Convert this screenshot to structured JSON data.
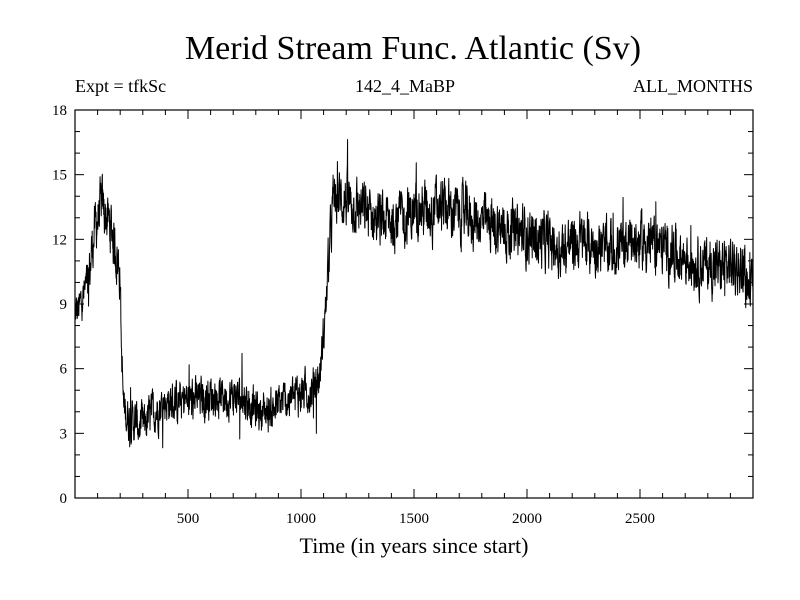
{
  "chart_data": {
    "type": "line",
    "title": "Merid Stream Func. Atlantic (Sv)",
    "subtitle_left": "Expt = tfkSc",
    "subtitle_center": "142_4_MaBP",
    "subtitle_right": "ALL_MONTHS",
    "xlabel": "Time (in years since start)",
    "ylabel": "",
    "xlim": [
      0,
      3000
    ],
    "ylim": [
      0,
      18
    ],
    "xticks": [
      500,
      1000,
      1500,
      2000,
      2500
    ],
    "yticks": [
      0,
      3,
      6,
      9,
      12,
      15,
      18
    ],
    "grid": false,
    "series": [
      {
        "color": "#000000",
        "x": [
          0,
          20,
          40,
          60,
          80,
          100,
          120,
          140,
          160,
          180,
          200,
          205,
          215,
          230,
          250,
          280,
          300,
          320,
          350,
          400,
          450,
          500,
          550,
          600,
          650,
          700,
          750,
          800,
          850,
          900,
          950,
          1000,
          1050,
          1080,
          1100,
          1120,
          1140,
          1150,
          1200,
          1250,
          1300,
          1350,
          1400,
          1450,
          1500,
          1550,
          1600,
          1650,
          1700,
          1750,
          1800,
          1850,
          1900,
          1950,
          2000,
          2050,
          2100,
          2150,
          2200,
          2250,
          2300,
          2350,
          2400,
          2450,
          2500,
          2550,
          2600,
          2650,
          2700,
          2750,
          2800,
          2850,
          2900,
          2950,
          3000
        ],
        "values": [
          8.5,
          8.8,
          9.5,
          10.0,
          12.0,
          13.0,
          13.5,
          13.0,
          12.5,
          11.5,
          10.5,
          7.0,
          4.2,
          3.8,
          3.6,
          3.4,
          3.3,
          3.6,
          4.0,
          4.5,
          4.4,
          4.5,
          4.6,
          4.8,
          4.7,
          4.7,
          4.6,
          4.1,
          4.0,
          4.3,
          4.6,
          4.9,
          5.0,
          5.5,
          7.5,
          10.5,
          13.5,
          14.0,
          13.8,
          13.5,
          13.2,
          12.8,
          12.9,
          13.0,
          13.2,
          13.4,
          13.5,
          13.4,
          13.2,
          13.0,
          12.8,
          12.6,
          12.4,
          12.3,
          12.2,
          12.0,
          11.8,
          11.6,
          11.8,
          11.9,
          11.7,
          11.5,
          11.6,
          11.8,
          11.9,
          11.8,
          11.6,
          11.4,
          11.2,
          11.0,
          10.8,
          10.7,
          10.8,
          10.6,
          9.5
        ]
      }
    ]
  }
}
